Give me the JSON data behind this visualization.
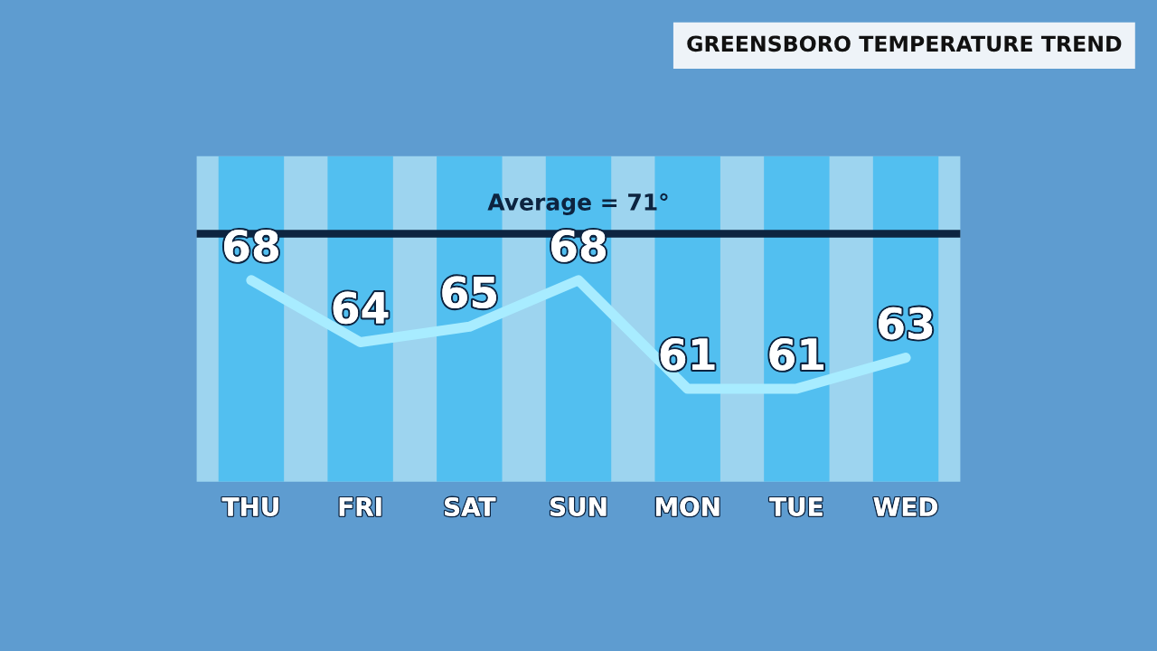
{
  "chart_data": {
    "type": "line",
    "title": "GREENSBORO TEMPERATURE TREND",
    "categories": [
      "THU",
      "FRI",
      "SAT",
      "SUN",
      "MON",
      "TUE",
      "WED"
    ],
    "series": [
      {
        "color": "#a8ecff",
        "values": [
          68,
          64,
          65,
          68,
          61,
          61,
          63
        ]
      }
    ],
    "data_labels": true,
    "line_style": "solid",
    "grid": false,
    "legend": false,
    "ref_lines": [
      {
        "axis": "y",
        "value": 71,
        "label": "Average = 71°",
        "color": "#0d2440",
        "line_style": "solid"
      }
    ]
  }
}
